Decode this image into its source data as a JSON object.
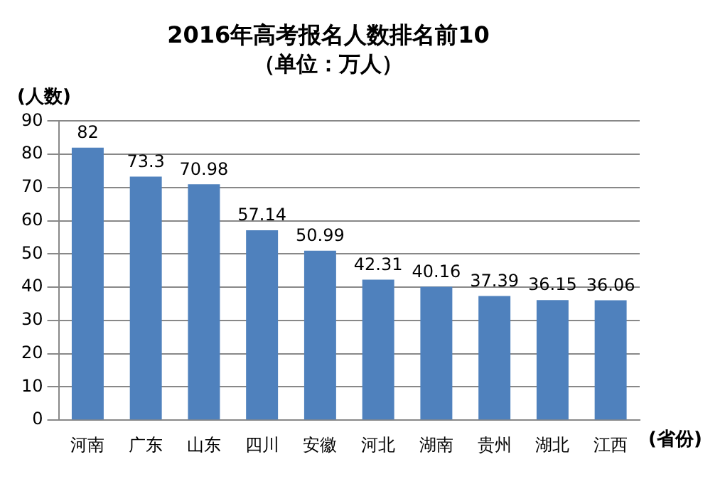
{
  "chart_data": {
    "type": "bar",
    "title": "2016年高考报名人数排名前10",
    "subtitle": "（单位：万人）",
    "ylabel": "(人数)",
    "xlabel": "(省份)",
    "categories": [
      "河南",
      "广东",
      "山东",
      "四川",
      "安徽",
      "河北",
      "湖南",
      "贵州",
      "湖北",
      "江西"
    ],
    "values": [
      82,
      73.3,
      70.98,
      57.14,
      50.99,
      42.31,
      40.16,
      37.39,
      36.15,
      36.06
    ],
    "color": "#4f81bd",
    "ylim": [
      0,
      90
    ],
    "yticks": [
      0,
      10,
      20,
      30,
      40,
      50,
      60,
      70,
      80,
      90
    ],
    "grid": "y",
    "data_labels": true,
    "legend": false
  }
}
